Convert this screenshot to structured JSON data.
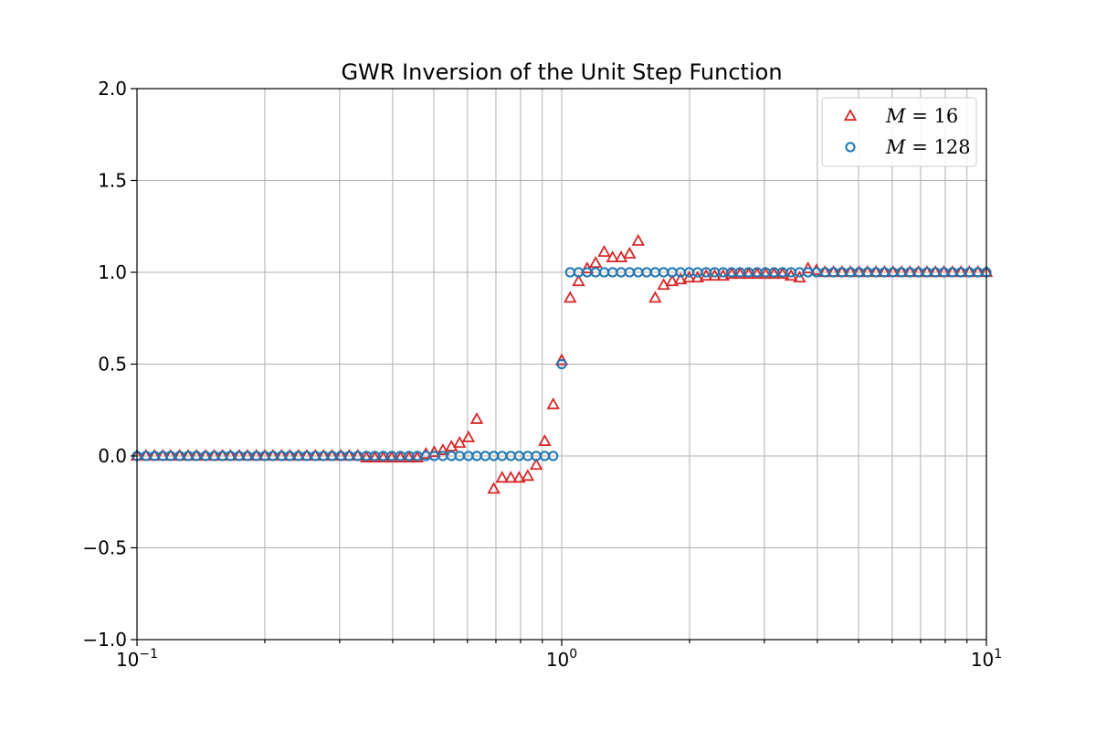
{
  "chart_data": {
    "type": "scatter",
    "title": "GWR Inversion of the Unit Step Function",
    "xlabel": "",
    "ylabel": "",
    "xscale": "log",
    "xlim": [
      0.1,
      10
    ],
    "ylim": [
      -1.0,
      2.0
    ],
    "grid": true,
    "legend_position": "top-right",
    "x_ticks": [
      {
        "value": 0.1,
        "base": "10",
        "exp": "−1"
      },
      {
        "value": 1,
        "base": "10",
        "exp": "0"
      },
      {
        "value": 10,
        "base": "10",
        "exp": "1"
      }
    ],
    "y_ticks": [
      {
        "value": -1.0,
        "label": "−1.0"
      },
      {
        "value": -0.5,
        "label": "−0.5"
      },
      {
        "value": 0.0,
        "label": "0.0"
      },
      {
        "value": 0.5,
        "label": "0.5"
      },
      {
        "value": 1.0,
        "label": "1.0"
      },
      {
        "value": 1.5,
        "label": "1.5"
      },
      {
        "value": 2.0,
        "label": "2.0"
      }
    ],
    "series": [
      {
        "name": "M = 16",
        "legend_var": "M",
        "legend_op": " = ",
        "legend_num": "16",
        "marker": "triangle",
        "color": "#d62728",
        "x": [
          0.1,
          0.105,
          0.11,
          0.115,
          0.12,
          0.126,
          0.132,
          0.138,
          0.145,
          0.152,
          0.159,
          0.166,
          0.174,
          0.182,
          0.191,
          0.2,
          0.209,
          0.219,
          0.229,
          0.24,
          0.251,
          0.263,
          0.275,
          0.288,
          0.302,
          0.316,
          0.331,
          0.347,
          0.363,
          0.38,
          0.398,
          0.417,
          0.437,
          0.457,
          0.479,
          0.501,
          0.525,
          0.55,
          0.575,
          0.603,
          0.631,
          0.692,
          0.724,
          0.759,
          0.794,
          0.832,
          0.871,
          0.912,
          0.955,
          1.0,
          1.047,
          1.096,
          1.148,
          1.202,
          1.259,
          1.318,
          1.38,
          1.445,
          1.514,
          1.66,
          1.738,
          1.82,
          1.905,
          1.995,
          2.089,
          2.188,
          2.291,
          2.399,
          2.512,
          2.63,
          2.754,
          2.884,
          3.02,
          3.162,
          3.311,
          3.467,
          3.631,
          3.802,
          3.981,
          4.169,
          4.365,
          4.571,
          4.786,
          5.012,
          5.248,
          5.495,
          5.754,
          6.026,
          6.31,
          6.607,
          6.918,
          7.244,
          7.586,
          7.943,
          8.318,
          8.71,
          9.12,
          9.55,
          10.0
        ],
        "y": [
          0,
          0,
          0,
          0,
          0,
          0,
          0,
          0,
          0,
          0,
          0,
          0,
          0,
          0,
          0,
          0,
          0,
          0,
          0,
          0,
          0,
          0,
          0,
          0,
          0,
          0,
          0,
          -0.01,
          -0.01,
          -0.01,
          -0.01,
          -0.01,
          -0.01,
          -0.01,
          0.01,
          0.02,
          0.03,
          0.05,
          0.07,
          0.1,
          0.2,
          -0.18,
          -0.12,
          -0.12,
          -0.12,
          -0.11,
          -0.05,
          0.08,
          0.28,
          0.52,
          0.86,
          0.95,
          1.02,
          1.05,
          1.11,
          1.08,
          1.08,
          1.1,
          1.17,
          0.86,
          0.93,
          0.95,
          0.96,
          0.97,
          0.97,
          0.98,
          0.98,
          0.98,
          0.99,
          0.99,
          0.99,
          0.99,
          0.99,
          0.99,
          0.99,
          0.98,
          0.97,
          1.02,
          1.01,
          1.0,
          1.0,
          1.0,
          1.0,
          1.0,
          1.0,
          1.0,
          1.0,
          1.0,
          1.0,
          1.0,
          1.0,
          1.0,
          1.0,
          1.0,
          1.0,
          1.0,
          1.0,
          1.0,
          1.0
        ]
      },
      {
        "name": "M = 128",
        "legend_var": "M",
        "legend_op": " = ",
        "legend_num": "128",
        "marker": "circle",
        "color": "#1f77b4",
        "x": [
          0.1,
          0.105,
          0.11,
          0.115,
          0.12,
          0.126,
          0.132,
          0.138,
          0.145,
          0.152,
          0.159,
          0.166,
          0.174,
          0.182,
          0.191,
          0.2,
          0.209,
          0.219,
          0.229,
          0.24,
          0.251,
          0.263,
          0.275,
          0.288,
          0.302,
          0.316,
          0.331,
          0.347,
          0.363,
          0.38,
          0.398,
          0.417,
          0.437,
          0.457,
          0.479,
          0.501,
          0.525,
          0.55,
          0.575,
          0.603,
          0.631,
          0.661,
          0.692,
          0.724,
          0.759,
          0.794,
          0.832,
          0.871,
          0.912,
          0.955,
          1.0,
          1.047,
          1.096,
          1.148,
          1.202,
          1.259,
          1.318,
          1.38,
          1.445,
          1.514,
          1.585,
          1.66,
          1.738,
          1.82,
          1.905,
          1.995,
          2.089,
          2.188,
          2.291,
          2.399,
          2.512,
          2.63,
          2.754,
          2.884,
          3.02,
          3.162,
          3.311,
          3.467,
          3.631,
          3.802,
          3.981,
          4.169,
          4.365,
          4.571,
          4.786,
          5.012,
          5.248,
          5.495,
          5.754,
          6.026,
          6.31,
          6.607,
          6.918,
          7.244,
          7.586,
          7.943,
          8.318,
          8.71,
          9.12,
          9.55,
          10.0
        ],
        "y": [
          0,
          0,
          0,
          0,
          0,
          0,
          0,
          0,
          0,
          0,
          0,
          0,
          0,
          0,
          0,
          0,
          0,
          0,
          0,
          0,
          0,
          0,
          0,
          0,
          0,
          0,
          0,
          0,
          0,
          0,
          0,
          0,
          0,
          0,
          0,
          0,
          0,
          0,
          0,
          0,
          0,
          0,
          0,
          0,
          0,
          0,
          0,
          0,
          0,
          0,
          0.5,
          1,
          1,
          1,
          1,
          1,
          1,
          1,
          1,
          1,
          1,
          1,
          1,
          1,
          1,
          1,
          1,
          1,
          1,
          1,
          1,
          1,
          1,
          1,
          1,
          1,
          1,
          1,
          1,
          1,
          1,
          1,
          1,
          1,
          1,
          1,
          1,
          1,
          1,
          1,
          1,
          1,
          1,
          1,
          1,
          1,
          1,
          1,
          1,
          1,
          1
        ]
      }
    ]
  }
}
